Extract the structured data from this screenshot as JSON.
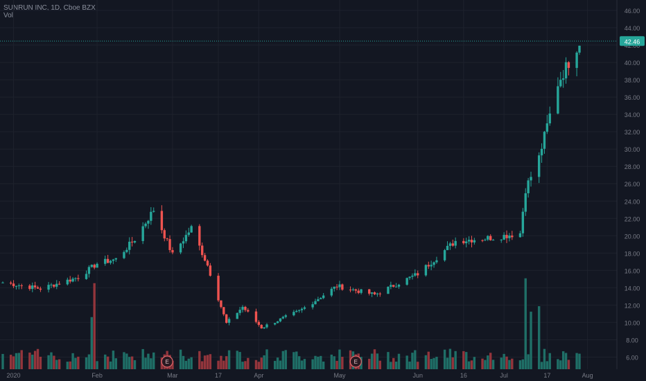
{
  "header": {
    "symbol_line": "SUNRUN INC, 1D, Cboe BZX",
    "volume_label": "Vol"
  },
  "last_price_label": "42.46",
  "earnings_markers": [
    "E",
    "E"
  ],
  "colors": {
    "background": "#131722",
    "grid": "#1e222d",
    "up": "#26a69a",
    "down": "#ef5350",
    "vol_up": "#1f6f67",
    "vol_down": "#93353c",
    "axis_text": "#787b86",
    "last_line": "#26a69a"
  },
  "chart_data": {
    "type": "candlestick",
    "title": "SUNRUN INC, 1D, Cboe BZX",
    "price_axis": {
      "ticks": [
        "6.00",
        "8.00",
        "10.00",
        "12.00",
        "14.00",
        "16.00",
        "18.00",
        "20.00",
        "22.00",
        "24.00",
        "26.00",
        "28.00",
        "30.00",
        "32.00",
        "34.00",
        "36.00",
        "38.00",
        "40.00",
        "42.00",
        "44.00",
        "46.00"
      ],
      "range": [
        4.6,
        47.2
      ]
    },
    "time_axis": {
      "ticks": [
        "2020",
        "Feb",
        "Mar",
        "17",
        "Apr",
        "May",
        "Jun",
        "16",
        "Jul",
        "17",
        "Aug"
      ]
    },
    "last_price": 42.46,
    "anchor_closes": [
      [
        "2019-12-27",
        14.6
      ],
      [
        "2020-01-10",
        13.9
      ],
      [
        "2020-01-24",
        15.2
      ],
      [
        "2020-01-31",
        16.8
      ],
      [
        "2020-02-07",
        17.3
      ],
      [
        "2020-02-14",
        19.6
      ],
      [
        "2020-02-21",
        23.0
      ],
      [
        "2020-02-28",
        17.8
      ],
      [
        "2020-03-06",
        20.9
      ],
      [
        "2020-03-12",
        16.6
      ],
      [
        "2020-03-19",
        9.9
      ],
      [
        "2020-03-25",
        11.8
      ],
      [
        "2020-04-01",
        9.4
      ],
      [
        "2020-04-15",
        11.3
      ],
      [
        "2020-04-29",
        14.2
      ],
      [
        "2020-05-13",
        13.2
      ],
      [
        "2020-05-29",
        15.6
      ],
      [
        "2020-06-12",
        19.4
      ],
      [
        "2020-06-26",
        19.8
      ],
      [
        "2020-07-06",
        20.3
      ],
      [
        "2020-07-08",
        25.4
      ],
      [
        "2020-07-13",
        29.0
      ],
      [
        "2020-07-20",
        37.6
      ],
      [
        "2020-07-28",
        42.46
      ]
    ],
    "volume": {
      "type": "bar",
      "spikes": [
        [
          "2020-01-30",
          14.2
        ],
        [
          "2020-01-29",
          8.6
        ],
        [
          "2020-07-08",
          15.0
        ],
        [
          "2020-07-10",
          9.5
        ],
        [
          "2020-07-13",
          10.4
        ]
      ]
    }
  }
}
